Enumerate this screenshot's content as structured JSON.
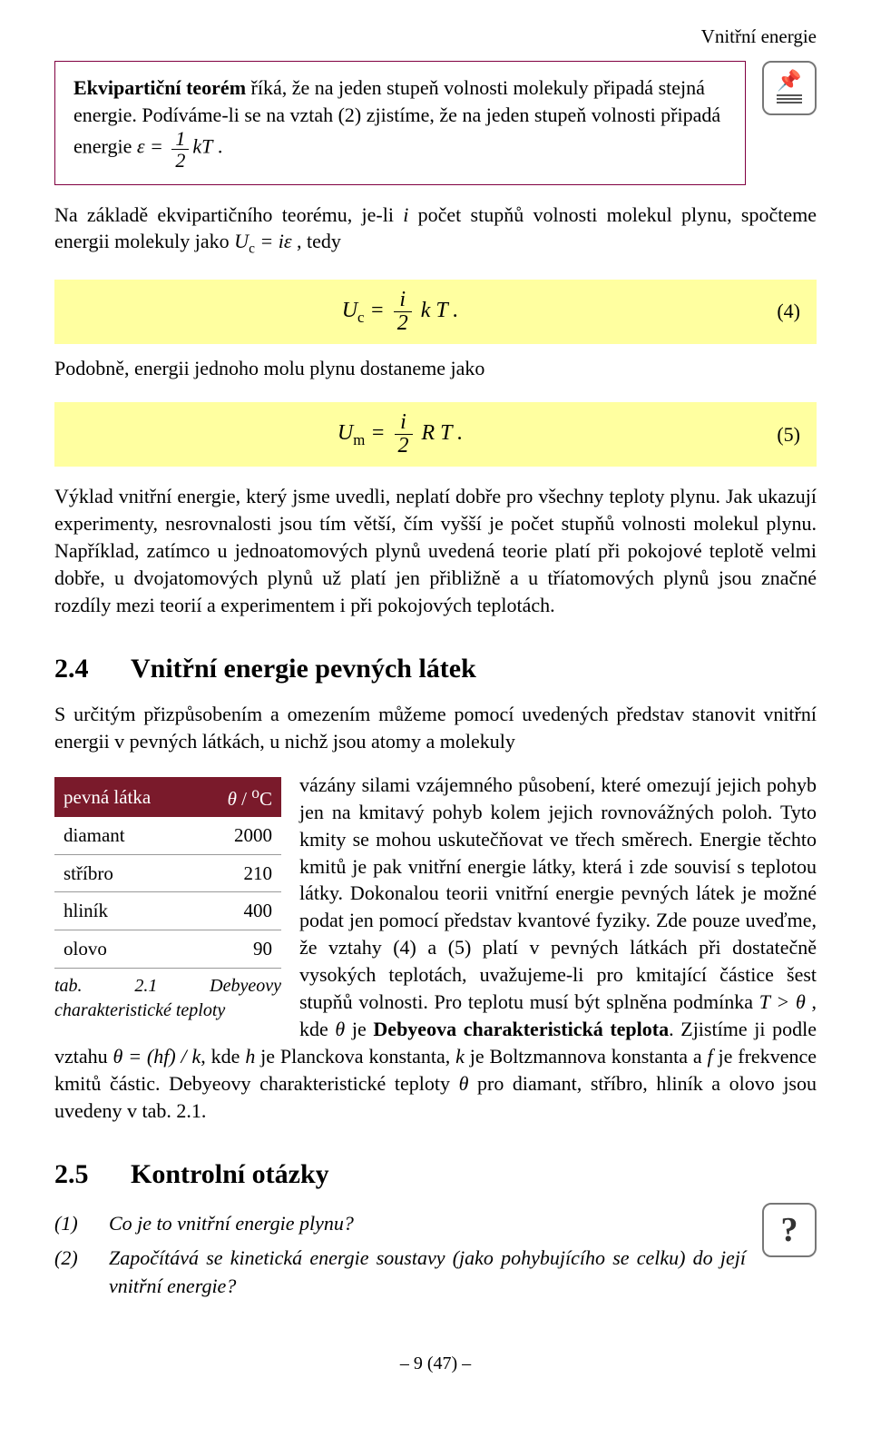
{
  "page_header": "Vnitřní energie",
  "theorem": {
    "bold": "Ekvipartiční teorém",
    "text_before": " říká, že na jeden stupeň volnosti molekuly připadá stejná energie. Podíváme-li se na vztah (2) zjistíme, že na jeden stupeň volnosti připadá energie ",
    "eps_eq_lhs": "ε =",
    "frac_num": "1",
    "frac_den": "2",
    "kT": "kT",
    "period": " ."
  },
  "para1": {
    "before": "Na základě ekvipartičního teorému, je-li ",
    "i": "i",
    "mid": " počet stupňů volnosti molekul plynu, spočteme energii molekuly jako ",
    "Uc": "U",
    "Uc_sub": "c",
    "eq": " = iε",
    "after": " , tedy"
  },
  "eq4": {
    "lhs": "U",
    "lhs_sub": "c",
    "eq": " = ",
    "num": "i",
    "den": "2",
    "tail": " k T .",
    "num_label": "(4)"
  },
  "para2": "Podobně, energii jednoho molu plynu dostaneme jako",
  "eq5": {
    "lhs": "U",
    "lhs_sub": "m",
    "eq": "  = ",
    "num": "i",
    "den": "2",
    "tail": " R T .",
    "num_label": "(5)"
  },
  "para3": "Výklad vnitřní energie, který jsme uvedli, neplatí dobře pro všechny teploty plynu. Jak ukazují experimenty, nesrovnalosti jsou tím větší, čím vyšší je počet stupňů volnosti molekul plynu. Například, zatímco u jednoatomových plynů uvedená teorie platí při pokojové teplotě velmi dobře, u dvojatomových plynů už platí jen přibližně a u tříatomových plynů jsou značné rozdíly mezi teorií a experimentem i při pokojových teplotách.",
  "section24": {
    "num": "2.4",
    "title": "Vnitřní energie pevných látek"
  },
  "para4_lead": "S určitým přizpůsobením a omezením můžeme pomocí uvedených představ stanovit vnitřní energii v pevných látkách, u nichž jsou atomy a molekuly",
  "table": {
    "header_col1": "pevná látka",
    "header_col2_theta": "θ",
    "header_col2_sep": " / ",
    "header_col2_unit_sup": "o",
    "header_col2_unit": "C",
    "header_bg": "#7a1a2b",
    "header_fg": "#ffffff",
    "rows": [
      {
        "name": "diamant",
        "val": "2000"
      },
      {
        "name": "stříbro",
        "val": "210"
      },
      {
        "name": "hliník",
        "val": "400"
      },
      {
        "name": "olovo",
        "val": "90"
      }
    ],
    "caption": "tab. 2.1 Debyeovy charakteristické teploty"
  },
  "para4_body": "vázány silami vzájemného působení, které omezují jejich pohyb jen na kmitavý pohyb kolem jejich rovnovážných poloh. Tyto kmity se mohou uskutečňovat ve třech směrech. Energie těchto kmitů je pak vnitřní energie látky, která i zde souvisí s teplotou látky. Dokonalou teorii vnitřní energie pevných látek je možné podat jen pomocí představ kvantové fyziky. Zde pouze uveďme, že vztahy (4) a (5) platí v pevných látkách při dostatečně vysokých teplotách, uvažujeme-li pro kmitající částice",
  "para4_tail_a": "šest stupňů volnosti. Pro teplotu musí být splněna podmínka ",
  "para4_cond": "T > θ",
  "para4_tail_b": " , kde ",
  "para4_theta": "θ",
  "para4_tail_c": " je ",
  "debye_bold": "Debyeova charakteristická teplota",
  "para4_tail_d": ". Zjistíme ji podle vztahu ",
  "debye_rel": "θ = (hf) / k",
  "para4_tail_e": ", kde ",
  "h": "h",
  "para4_tail_f": " je Planckova konstanta, ",
  "k": "k",
  "para4_tail_g": " je Boltzmannova konstanta a ",
  "f": "f",
  "para4_tail_h": " je frekvence  kmitů částic. Debyeovy charakteristické teploty ",
  "theta2": "θ",
  "para4_tail_i": " pro diamant, stříbro, hliník a olovo jsou uvedeny v tab. 2.1.",
  "section25": {
    "num": "2.5",
    "title": "Kontrolní otázky"
  },
  "questions": [
    {
      "n": "(1)",
      "t": "Co je to vnitřní energie plynu?"
    },
    {
      "n": "(2)",
      "t": "Započítává se kinetická energie soustavy (jako pohybujícího se celku) do její vnitřní energie?"
    }
  ],
  "footer": "– 9 (47) –",
  "colors": {
    "highlight_bg": "#ffffa0",
    "theorem_border": "#800040",
    "icon_border": "#777777",
    "text": "#000000",
    "background": "#ffffff"
  }
}
